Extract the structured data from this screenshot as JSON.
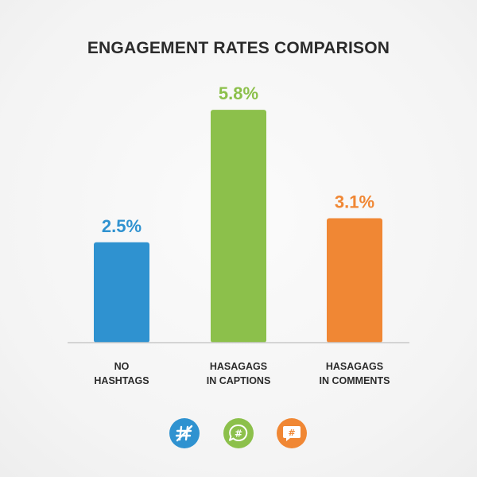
{
  "chart_data": {
    "type": "bar",
    "title": "ENGAGEMENT RATES COMPARISON",
    "categories": [
      [
        "NO",
        "HASHTAGS"
      ],
      [
        "HASAGAGS",
        "IN CAPTIONS"
      ],
      [
        "HASAGAGS",
        "IN COMMENTS"
      ]
    ],
    "values": [
      2.5,
      5.8,
      3.1
    ],
    "value_labels": [
      "2.5%",
      "5.8%",
      "3.1%"
    ],
    "colors": [
      "#2f92d0",
      "#8cc04b",
      "#f08734"
    ],
    "ylim": [
      0,
      6
    ],
    "xlabel": "",
    "ylabel": "",
    "grid": false,
    "legend_icons": [
      {
        "name": "hashtag-percent-icon",
        "color": "#2f92d0"
      },
      {
        "name": "hashtag-speech-bubble-icon",
        "color": "#8cc04b"
      },
      {
        "name": "hashtag-comment-icon",
        "color": "#f08734"
      }
    ]
  }
}
